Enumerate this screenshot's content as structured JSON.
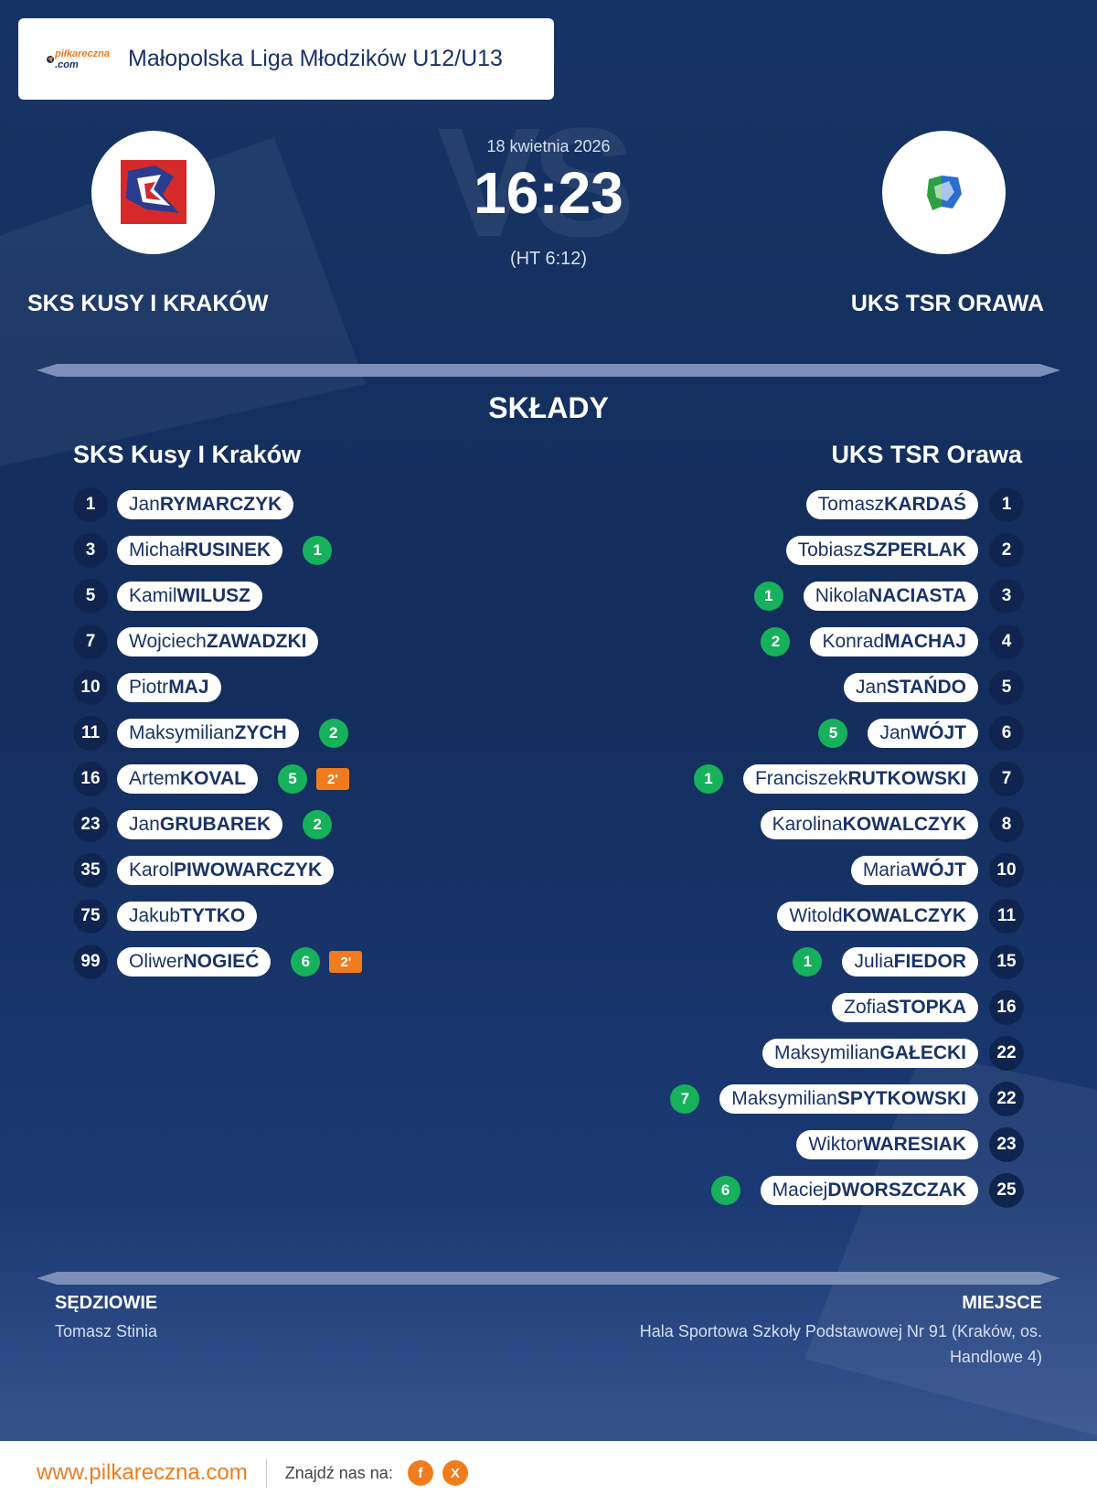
{
  "header": {
    "logo_text_main": "piłkareczna",
    "logo_text_sub": ".com",
    "league": "Małopolska Liga Młodzików U12/U13"
  },
  "match": {
    "date": "18 kwietnia 2026",
    "score": "16:23",
    "halftime": "(HT 6:12)",
    "vs_text": "VS"
  },
  "home": {
    "name": "SKS KUSY I KRAKÓW",
    "lineup_title": "SKS Kusy I Kraków"
  },
  "away": {
    "name": "UKS TSR ORAWA",
    "lineup_title": "UKS TSR Orawa"
  },
  "section_title": "SKŁADY",
  "home_players": [
    {
      "num": "1",
      "first": "Jan",
      "last": "RYMARCZYK",
      "goals": "",
      "pen": ""
    },
    {
      "num": "3",
      "first": "Michał",
      "last": "RUSINEK",
      "goals": "1",
      "pen": ""
    },
    {
      "num": "5",
      "first": "Kamil",
      "last": "WILUSZ",
      "goals": "",
      "pen": ""
    },
    {
      "num": "7",
      "first": "Wojciech",
      "last": "ZAWADZKI",
      "goals": "",
      "pen": ""
    },
    {
      "num": "10",
      "first": "Piotr",
      "last": "MAJ",
      "goals": "",
      "pen": ""
    },
    {
      "num": "11",
      "first": "Maksymilian",
      "last": "ZYCH",
      "goals": "2",
      "pen": ""
    },
    {
      "num": "16",
      "first": "Artem",
      "last": "KOVAL",
      "goals": "5",
      "pen": "2'"
    },
    {
      "num": "23",
      "first": "Jan",
      "last": "GRUBAREK",
      "goals": "2",
      "pen": ""
    },
    {
      "num": "35",
      "first": "Karol",
      "last": "PIWOWARCZYK",
      "goals": "",
      "pen": ""
    },
    {
      "num": "75",
      "first": "Jakub",
      "last": "TYTKO",
      "goals": "",
      "pen": ""
    },
    {
      "num": "99",
      "first": "Oliwer",
      "last": "NOGIEĆ",
      "goals": "6",
      "pen": "2'"
    }
  ],
  "away_players": [
    {
      "num": "1",
      "first": "Tomasz",
      "last": "KARDAŚ",
      "goals": ""
    },
    {
      "num": "2",
      "first": "Tobiasz",
      "last": "SZPERLAK",
      "goals": ""
    },
    {
      "num": "3",
      "first": "Nikola",
      "last": "NACIASTA",
      "goals": "1"
    },
    {
      "num": "4",
      "first": "Konrad",
      "last": "MACHAJ",
      "goals": "2"
    },
    {
      "num": "5",
      "first": "Jan",
      "last": "STAŃDO",
      "goals": ""
    },
    {
      "num": "6",
      "first": "Jan",
      "last": "WÓJT",
      "goals": "5"
    },
    {
      "num": "7",
      "first": "Franciszek",
      "last": "RUTKOWSKI",
      "goals": "1"
    },
    {
      "num": "8",
      "first": "Karolina",
      "last": "KOWALCZYK",
      "goals": ""
    },
    {
      "num": "10",
      "first": "Maria",
      "last": "WÓJT",
      "goals": ""
    },
    {
      "num": "11",
      "first": "Witold",
      "last": "KOWALCZYK",
      "goals": ""
    },
    {
      "num": "15",
      "first": "Julia",
      "last": "FIEDOR",
      "goals": "1"
    },
    {
      "num": "16",
      "first": "Zofia",
      "last": "STOPKA",
      "goals": ""
    },
    {
      "num": "22",
      "first": "Maksymilian",
      "last": "GAŁECKI",
      "goals": ""
    },
    {
      "num": "22",
      "first": "Maksymilian",
      "last": "SPYTKOWSKI",
      "goals": "7"
    },
    {
      "num": "23",
      "first": "Wiktor",
      "last": "WARESIAK",
      "goals": ""
    },
    {
      "num": "25",
      "first": "Maciej",
      "last": "DWORSZCZAK",
      "goals": "6"
    }
  ],
  "referees": {
    "label": "SĘDZIOWIE",
    "value": "Tomasz Stinia"
  },
  "venue": {
    "label": "MIEJSCE",
    "value": "Hala Sportowa Szkoły Podstawowej Nr 91 (Kraków, os. Handlowe 4)"
  },
  "footer": {
    "url": "www.pilkareczna.com",
    "find_us": "Znajdź nas na:",
    "social": [
      {
        "icon": "facebook-icon",
        "glyph": "f"
      },
      {
        "icon": "x-icon",
        "glyph": "X"
      }
    ]
  },
  "colors": {
    "accent": "#f07c1e",
    "goal": "#17b05b",
    "navy": "#1a3366"
  }
}
